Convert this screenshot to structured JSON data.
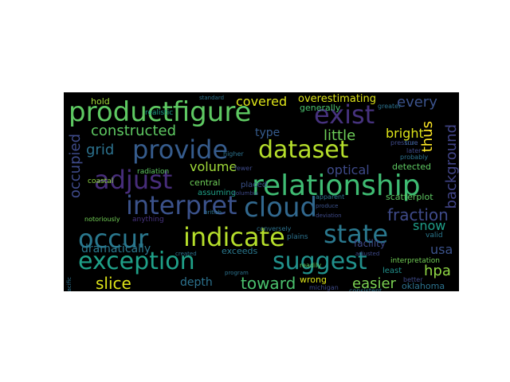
{
  "colors": {
    "background": "#000000",
    "page": "#ffffff"
  },
  "words": [
    "productfigure",
    "exist",
    "relationship",
    "provide",
    "dataset",
    "adjust",
    "interpret",
    "cloud",
    "indicate",
    "state",
    "occur",
    "exception",
    "suggest",
    "constructed",
    "little",
    "bright",
    "every",
    "covered",
    "overestimating",
    "generally",
    "thus",
    "background",
    "grid",
    "occupied",
    "volume",
    "optical",
    "fraction",
    "snow",
    "usa",
    "hpa",
    "slice",
    "toward",
    "depth",
    "easier",
    "wrong",
    "oklahoma",
    "dramatically",
    "hold",
    "type",
    "detected",
    "central",
    "scatterplot",
    "assuming",
    "placed",
    "facility",
    "interpretation",
    "valid",
    "exceeds",
    "realistic",
    "radiation",
    "coastal",
    "standard",
    "columbia",
    "british",
    "plains",
    "anything",
    "notoriously",
    "michigan",
    "consistent",
    "least",
    "better",
    "produce",
    "deviation",
    "apparent",
    "conversely",
    "created",
    "higher",
    "fewer",
    "true",
    "later",
    "probably",
    "pressure",
    "readily",
    "program",
    "pacific",
    "adjusted",
    "greater"
  ]
}
